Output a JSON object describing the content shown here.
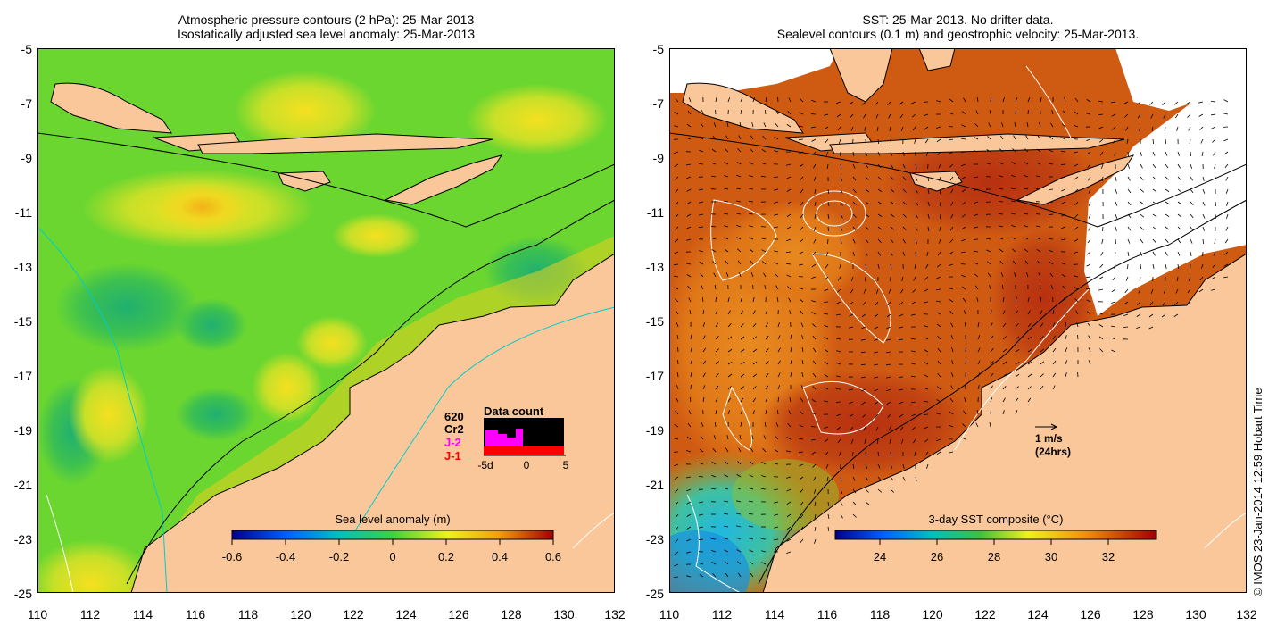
{
  "left_panel": {
    "title_line1": "Atmospheric pressure contours (2 hPa): 25-Mar-2013",
    "title_line2": "Isostatically adjusted sea level anomaly: 25-Mar-2013",
    "colorbar_title": "Sea level anomaly (m)",
    "colorbar_ticks": [
      "-0.6",
      "-0.4",
      "-0.2",
      "0",
      "0.2",
      "0.4",
      "0.6"
    ],
    "data_count": {
      "title": "Data count",
      "labels": [
        "620",
        "Cr2",
        "J-2",
        "J-1"
      ],
      "axis_ticks": [
        "-5d",
        "0",
        "5"
      ],
      "colors": {
        "620": "#000000",
        "Cr2": "#000000",
        "J-2": "#ff00ff",
        "J-1": "#ff0000"
      }
    }
  },
  "right_panel": {
    "title_line1": "SST: 25-Mar-2013. No drifter data.",
    "title_line2": "Sealevel contours (0.1 m) and geostrophic velocity: 25-Mar-2013.",
    "colorbar_title": "3-day SST composite (°C)",
    "colorbar_ticks": [
      "24",
      "26",
      "28",
      "30",
      "32"
    ],
    "velocity_key_line1": "1 m/s",
    "velocity_key_line2": "(24hrs)"
  },
  "axes": {
    "y_ticks": [
      "-5",
      "-7",
      "-9",
      "-11",
      "-13",
      "-15",
      "-17",
      "-19",
      "-21",
      "-23",
      "-25"
    ],
    "x_ticks": [
      "110",
      "112",
      "114",
      "116",
      "118",
      "120",
      "122",
      "124",
      "126",
      "128",
      "130",
      "132"
    ]
  },
  "credit": "© IMOS 23-Jan-2014 12:59 Hobart Time",
  "colors": {
    "land": "#f9c79a",
    "sla_bg": "#6bd630",
    "sst_bg": "#cf5a12",
    "contour_blue": "#00cccc"
  }
}
